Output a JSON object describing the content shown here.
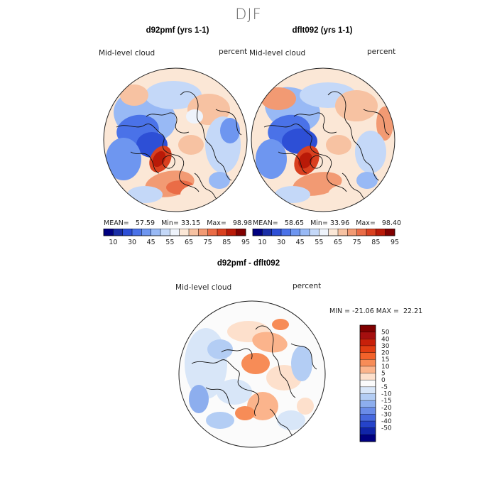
{
  "season": "DJF",
  "chart_data": [
    {
      "type": "heatmap",
      "panel": "left",
      "title": "d92pmf (yrs 1-1)",
      "variable": "Mid-level cloud",
      "units": "percent",
      "projection": "north polar stereographic",
      "stats": {
        "mean_label": "MEAN=",
        "mean": "57.59",
        "min_label": "Min=",
        "min": "33.15",
        "max_label": "Max=",
        "max": "98.98"
      },
      "colorbar": {
        "tick_labels": [
          "10",
          "30",
          "45",
          "55",
          "65",
          "75",
          "85",
          "95"
        ],
        "colors": [
          "#000080",
          "#1a2ea6",
          "#2d4fd6",
          "#4a72e8",
          "#6e96f0",
          "#98b9f5",
          "#c4d8f8",
          "#eef3fb",
          "#fbe7d6",
          "#f7c2a2",
          "#f29a73",
          "#ea6c46",
          "#d9401f",
          "#b91a08",
          "#800000"
        ]
      }
    },
    {
      "type": "heatmap",
      "panel": "right",
      "title": "dflt092 (yrs 1-1)",
      "variable": "Mid-level cloud",
      "units": "percent",
      "projection": "north polar stereographic",
      "stats": {
        "mean_label": "MEAN=",
        "mean": "58.65",
        "min_label": "Min=",
        "min": "33.96",
        "max_label": "Max=",
        "max": "98.40"
      },
      "colorbar": {
        "tick_labels": [
          "10",
          "30",
          "45",
          "55",
          "65",
          "75",
          "85",
          "95"
        ],
        "colors": [
          "#000080",
          "#1a2ea6",
          "#2d4fd6",
          "#4a72e8",
          "#6e96f0",
          "#98b9f5",
          "#c4d8f8",
          "#eef3fb",
          "#fbe7d6",
          "#f7c2a2",
          "#f29a73",
          "#ea6c46",
          "#d9401f",
          "#b91a08",
          "#800000"
        ]
      }
    },
    {
      "type": "heatmap",
      "panel": "difference",
      "title": "d92pmf - dflt092",
      "variable": "Mid-level cloud",
      "units": "percent",
      "projection": "north polar stereographic",
      "stats": {
        "min_label": "MIN =",
        "min": "-21.06",
        "max_label": "MAX =",
        "max": "22.21"
      },
      "colorbar": {
        "tick_labels": [
          "50",
          "40",
          "30",
          "20",
          "15",
          "10",
          "5",
          "0",
          "-5",
          "-10",
          "-15",
          "-20",
          "-30",
          "-40",
          "-50"
        ],
        "colors": [
          "#800000",
          "#a50f0f",
          "#c8200a",
          "#e23d12",
          "#f2622a",
          "#f78c57",
          "#fbb48c",
          "#fde0cc",
          "#fbfbfb",
          "#d8e6f8",
          "#b3cdf4",
          "#8daeee",
          "#6a8ce8",
          "#4668de",
          "#2543c9",
          "#1024a8",
          "#000080"
        ]
      }
    }
  ]
}
